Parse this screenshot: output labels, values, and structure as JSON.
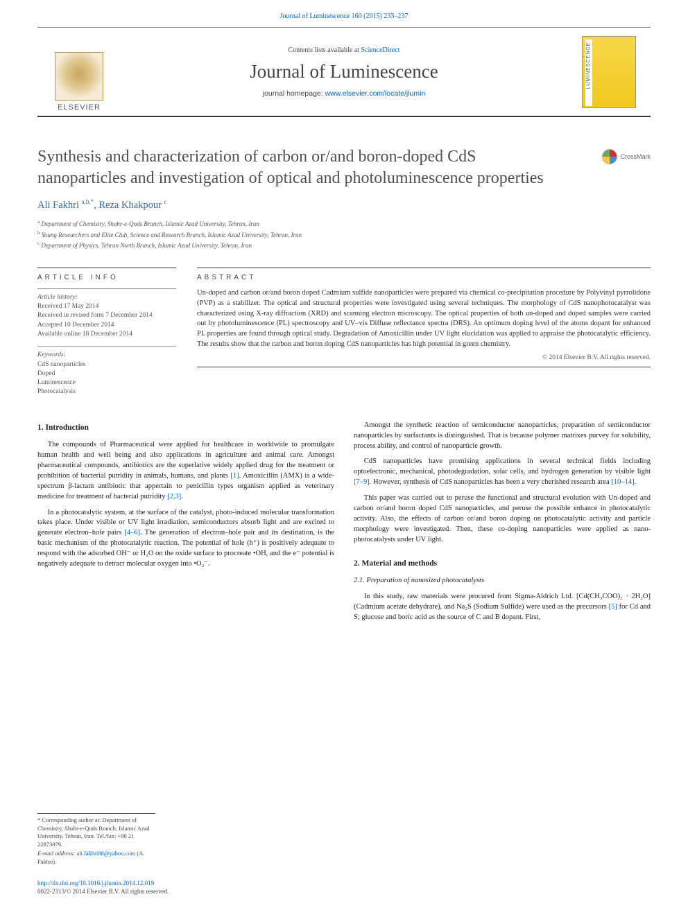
{
  "top": {
    "citation": "Journal of Luminescence 160 (2015) 233–237",
    "contents_prefix": "Contents lists available at ",
    "contents_link": "ScienceDirect",
    "journal_name": "Journal of Luminescence",
    "homepage_prefix": "journal homepage: ",
    "homepage_url": "www.elsevier.com/locate/jlumin",
    "publisher": "ELSEVIER"
  },
  "crossmark": {
    "label": "CrossMark"
  },
  "title": "Synthesis and characterization of carbon or/and boron-doped CdS nanoparticles and investigation of optical and photoluminescence properties",
  "authors_html": "Ali Fakhri <sup>a,b,*</sup>, Reza Khakpour <sup>c</sup>",
  "affiliations": [
    {
      "sup": "a",
      "text": "Department of Chemistry, Shahr-e-Qods Branch, Islamic Azad University, Tehran, Iran"
    },
    {
      "sup": "b",
      "text": "Young Researchers and Elite Club, Science and Research Branch, Islamic Azad University, Tehran, Iran"
    },
    {
      "sup": "c",
      "text": "Department of Physics, Tehran North Branch, Islamic Azad University, Tehran, Iran"
    }
  ],
  "info": {
    "label": "ARTICLE INFO",
    "history_label": "Article history:",
    "history": [
      "Received 17 May 2014",
      "Received in revised form 7 December 2014",
      "Accepted 10 December 2014",
      "Available online 18 December 2014"
    ],
    "keywords_label": "Keywords:",
    "keywords": [
      "CdS nanoparticles",
      "Doped",
      "Luminescence",
      "Photocatalysis"
    ]
  },
  "abstract": {
    "label": "ABSTRACT",
    "text": "Un-doped and carbon or/and boron doped Cadmium sulfide nanoparticles were prepared via chemical co-precipitation procedure by Polyvinyl pyrrolidone (PVP) as a stabilizer. The optical and structural properties were investigated using several techniques. The morphology of CdS nanophotocatalyst was characterized using X-ray diffraction (XRD) and scanning electron microscopy. The optical properties of both un-doped and doped samples were carried out by photoluminescence (PL) spectroscopy and UV–vis Diffuse reflectance spectra (DRS). An optimum doping level of the atoms dopant for enhanced PL properties are found through optical study. Degradation of Amoxicillin under UV light elucidation was applied to appraise the photocatalytic efficiency. The results show that the carbon and boron doping CdS nanoparticles has high potential in green chemistry.",
    "copyright": "© 2014 Elsevier B.V. All rights reserved."
  },
  "body": {
    "s1_title": "1.  Introduction",
    "s1_p1": "The compounds of Pharmaceutical were applied for healthcare in worldwide to promulgate human health and well being and also applications in agriculture and animal care. Amongst pharmaceutical compounds, antibiotics are the superlative widely applied drug for the treatment or prohibition of bacterial putridity in animals, humans, and plants ",
    "s1_p1_ref": "[1]",
    "s1_p1b": ". Amoxicillin (AMX) is a wide-spectrum β-lactam antibiotic that appertain to penicillin types organism applied as veterinary medicine for treatment of bacterial putridity ",
    "s1_p1b_ref": "[2,3]",
    "s1_p2a": "In a photocatalytic system, at the surface of the catalyst, photo-induced molecular transformation takes place. Under visible or UV light irradiation, semiconductors absorb light and are excited to generate electron–hole pairs ",
    "s1_p2_ref": "[4–6]",
    "s1_p2b": ". The generation of electron–hole pair and its destination, is the basic mechanism of the photocatalytic reaction. The potential of hole (h⁺) is positively adequate to respond with the adsorbed OH⁻ or H₂O on the oxide surface to procreate •OH, and the e⁻ potential is negatively adequate to detract molecular oxygen into •O₂⁻.",
    "s1_p3": "Amongst the synthetic reaction of semiconductor nanoparticles, preparation of semiconductor nanoparticles by surfactants is distinguished. That is because polymer matrixes purvey for solubility, process ability, and control of nanoparticle growth.",
    "s1_p4a": "CdS nanoparticles have promising applications in several technical fields including optoelectronic, mechanical, photodegradation, solar cells, and hydrogen generation by visible light ",
    "s1_p4_ref1": "[7–9]",
    "s1_p4b": ". However, synthesis of CdS nanoparticles has been a very cherished research area ",
    "s1_p4_ref2": "[10–14]",
    "s1_p5": "This paper was carried out to peruse the functional and structural evolution with Un-doped and carbon or/and boron doped CdS nanoparticles, and peruse the possible enhance in photocatalytic activity. Also, the effects of carbon or/and boron doping on photocatalytic activity and particle morphology were investigated. Then, these co-doping nanoparticles were applied as nano-photocatalysts under UV light.",
    "s2_title": "2.  Material and methods",
    "s2_1_title": "2.1.  Preparation of nanosized photocatalysts",
    "s2_1_p1a": "In this study, raw materials were procured from Sigma-Aldrich Ltd. [Cd(CH₃COO)₂ · 2H₂O] (Cadmium acetate dehydrate), and Na₂S (Sodium Sulfide) were used as the precursors ",
    "s2_1_ref": "[5]",
    "s2_1_p1b": " for Cd and S; glucose and boric acid as the source of C and B dopant. First,"
  },
  "footnotes": {
    "corr": "* Corresponding author at: Department of Chemistry, Shahr-e-Qods Branch, Islamic Azad University, Tehran, Iran. Tel./fax: +98 21 22873079.",
    "email_label": "E-mail address: ",
    "email": "ali.fakhri88@yahoo.com",
    "email_suffix": " (A. Fakhri)."
  },
  "footer": {
    "doi": "http://dx.doi.org/10.1016/j.jlumin.2014.12.019",
    "issn_line": "0022-2313/© 2014 Elsevier B.V. All rights reserved."
  },
  "colors": {
    "link": "#0066cc",
    "text": "#333333",
    "heading": "#505050",
    "author": "#3b6aa0"
  }
}
